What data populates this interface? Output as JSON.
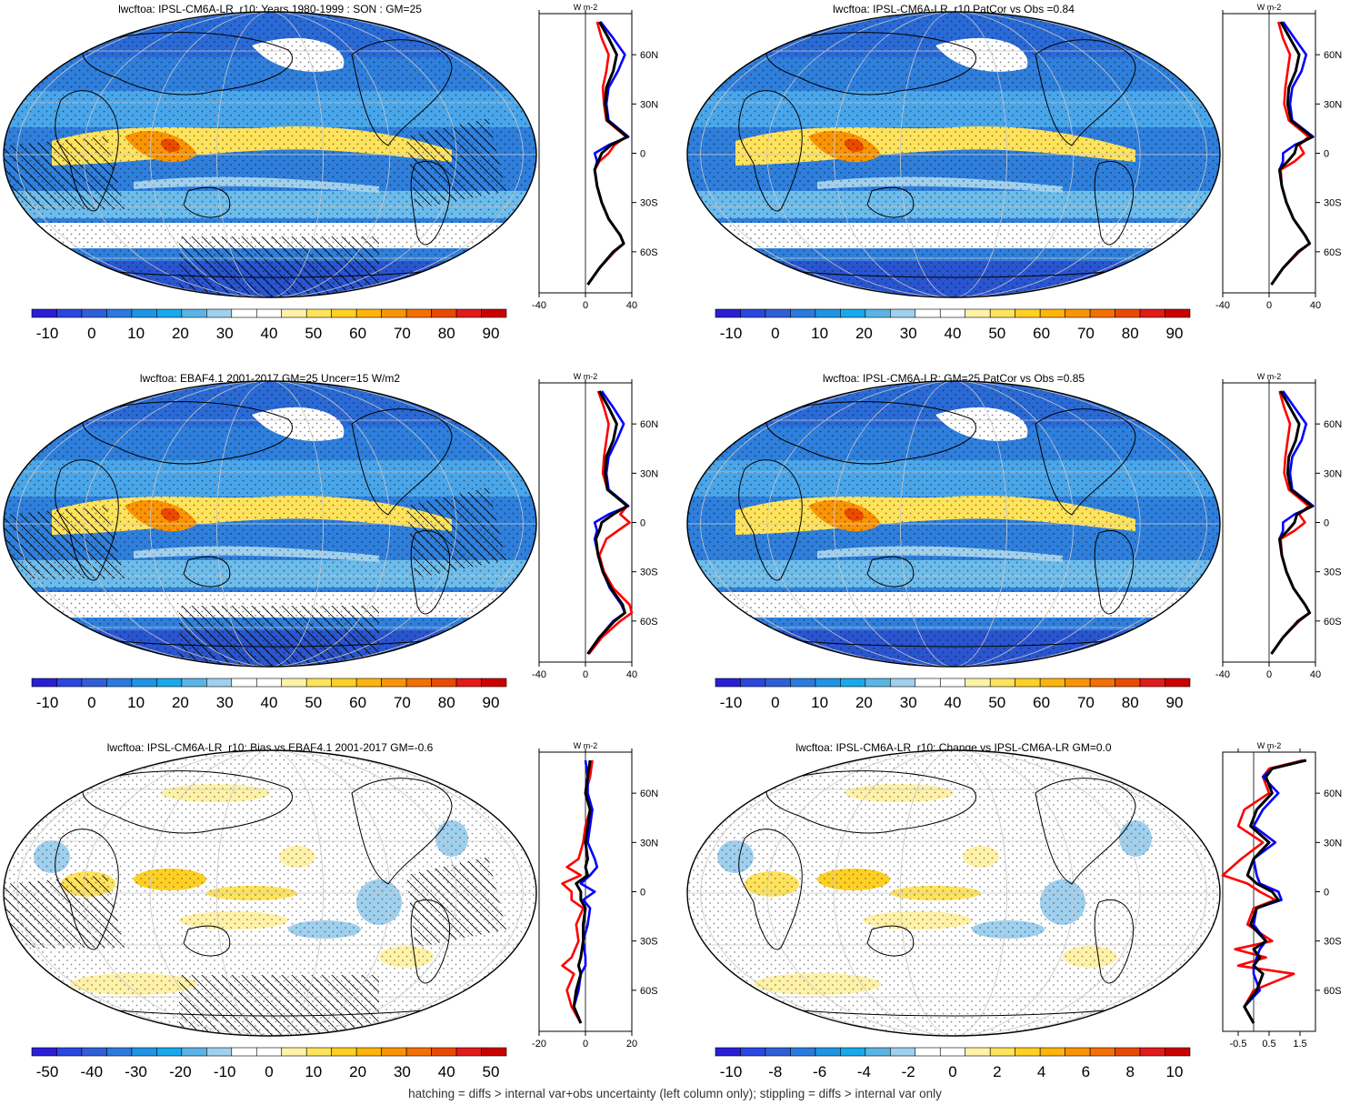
{
  "footnote": "hatching = diffs > internal var+obs uncertainty (left column only); stippling = diffs > internal var only",
  "colors": {
    "palette12": [
      "#2a1fd6",
      "#2c46e0",
      "#2f5fd8",
      "#2a7ae0",
      "#1e94e4",
      "#17a9ec",
      "#5ab4e6",
      "#9fd0ee",
      "#ffffff",
      "#ffffff",
      "#fff2a8",
      "#ffe35c",
      "#ffd024",
      "#ffb40a",
      "#fb9404",
      "#f47000",
      "#ea4a00",
      "#e31a1a",
      "#cc0000"
    ],
    "obs_line": "#0000ff",
    "model_line": "#ff0000",
    "mean_line": "#000000"
  },
  "chart_data": [
    {
      "type": "heatmap",
      "title": "lwcftoa: IPSL-CM6A-LR_r10: Years 1980-1999 : SON : GM=25",
      "colorbar_ticks": [
        "-10",
        "0",
        "10",
        "20",
        "30",
        "40",
        "50",
        "60",
        "70",
        "80",
        "90"
      ],
      "zonal": {
        "unit": "W m-2",
        "xticks": [
          "-40",
          "0",
          "40"
        ],
        "xlim": [
          -40,
          40
        ],
        "yticks": [
          "60N",
          "30N",
          "0",
          "30S",
          "60S"
        ],
        "lat": [
          80,
          70,
          60,
          50,
          40,
          30,
          20,
          10,
          5,
          0,
          -5,
          -10,
          -20,
          -30,
          -40,
          -50,
          -55,
          -60,
          -70,
          -80
        ],
        "series": [
          {
            "name": "red",
            "values": [
              10,
              14,
              20,
              18,
              15,
              16,
              18,
              35,
              25,
              20,
              12,
              8,
              10,
              14,
              20,
              30,
              33,
              25,
              12,
              2
            ]
          },
          {
            "name": "blue",
            "values": [
              13,
              24,
              34,
              28,
              20,
              18,
              20,
              37,
              20,
              8,
              10,
              8,
              10,
              14,
              20,
              30,
              33,
              24,
              12,
              2
            ]
          },
          {
            "name": "black",
            "values": [
              12,
              20,
              27,
              24,
              18,
              17,
              19,
              36,
              22,
              14,
              11,
              8,
              10,
              14,
              20,
              30,
              33,
              24,
              12,
              2
            ]
          }
        ]
      }
    },
    {
      "type": "heatmap",
      "title": "lwcftoa: IPSL-CM6A-LR_r10 PatCor vs Obs =0.84",
      "colorbar_ticks": [
        "-10",
        "0",
        "10",
        "20",
        "30",
        "40",
        "50",
        "60",
        "70",
        "80",
        "90"
      ],
      "zonal": {
        "unit": "W m-2",
        "xticks": [
          "-40",
          "0",
          "40"
        ],
        "xlim": [
          -40,
          40
        ],
        "yticks": [
          "60N",
          "30N",
          "0",
          "30S",
          "60S"
        ],
        "lat": [
          80,
          70,
          60,
          50,
          40,
          30,
          20,
          10,
          5,
          0,
          -5,
          -10,
          -20,
          -30,
          -40,
          -50,
          -55,
          -60,
          -70,
          -80
        ],
        "series": [
          {
            "name": "red",
            "values": [
              8,
              12,
              18,
              16,
              14,
              13,
              17,
              34,
              26,
              30,
              22,
              10,
              11,
              15,
              21,
              31,
              35,
              26,
              12,
              2
            ]
          },
          {
            "name": "blue",
            "values": [
              12,
              22,
              32,
              28,
              20,
              18,
              20,
              38,
              22,
              12,
              12,
              9,
              11,
              15,
              21,
              31,
              35,
              25,
              12,
              2
            ]
          },
          {
            "name": "black",
            "values": [
              10,
              18,
              26,
              23,
              17,
              16,
              19,
              37,
              24,
              22,
              16,
              9,
              11,
              15,
              21,
              31,
              35,
              25,
              12,
              2
            ]
          }
        ]
      }
    },
    {
      "type": "heatmap",
      "title": "lwcftoa: EBAF4.1 2001-2017 GM=25 Uncer=15 W/m2",
      "colorbar_ticks": [
        "-10",
        "0",
        "10",
        "20",
        "30",
        "40",
        "50",
        "60",
        "70",
        "80",
        "90"
      ],
      "zonal": {
        "unit": "W m-2",
        "xticks": [
          "-40",
          "0",
          "40"
        ],
        "xlim": [
          -40,
          40
        ],
        "yticks": [
          "60N",
          "30N",
          "0",
          "30S",
          "60S"
        ],
        "lat": [
          80,
          70,
          60,
          50,
          40,
          30,
          20,
          10,
          5,
          0,
          -5,
          -10,
          -20,
          -30,
          -40,
          -50,
          -55,
          -60,
          -70,
          -80
        ],
        "series": [
          {
            "name": "red",
            "values": [
              11,
              16,
              20,
              18,
              16,
              15,
              19,
              36,
              30,
              38,
              28,
              18,
              12,
              16,
              24,
              38,
              40,
              30,
              14,
              3
            ]
          },
          {
            "name": "blue",
            "values": [
              14,
              24,
              33,
              27,
              20,
              18,
              20,
              37,
              20,
              8,
              10,
              8,
              11,
              15,
              21,
              31,
              34,
              24,
              12,
              2
            ]
          },
          {
            "name": "black",
            "values": [
              12,
              20,
              27,
              24,
              18,
              17,
              19,
              36,
              24,
              14,
              12,
              9,
              11,
              15,
              22,
              32,
              34,
              25,
              12,
              2
            ]
          }
        ]
      }
    },
    {
      "type": "heatmap",
      "title": "lwcftoa: IPSL-CM6A-LR: GM=25 PatCor vs Obs =0.85",
      "colorbar_ticks": [
        "-10",
        "0",
        "10",
        "20",
        "30",
        "40",
        "50",
        "60",
        "70",
        "80",
        "90"
      ],
      "zonal": {
        "unit": "W m-2",
        "xticks": [
          "-40",
          "0",
          "40"
        ],
        "xlim": [
          -40,
          40
        ],
        "yticks": [
          "60N",
          "30N",
          "0",
          "30S",
          "60S"
        ],
        "lat": [
          80,
          70,
          60,
          50,
          40,
          30,
          20,
          10,
          5,
          0,
          -5,
          -10,
          -20,
          -30,
          -40,
          -50,
          -55,
          -60,
          -70,
          -80
        ],
        "series": [
          {
            "name": "red",
            "values": [
              9,
              13,
              18,
              16,
              14,
              13,
              17,
              34,
              26,
              31,
              22,
              10,
              11,
              15,
              21,
              31,
              35,
              26,
              12,
              2
            ]
          },
          {
            "name": "blue",
            "values": [
              12,
              22,
              32,
              28,
              20,
              18,
              20,
              38,
              22,
              12,
              12,
              9,
              11,
              15,
              21,
              31,
              35,
              25,
              12,
              2
            ]
          },
          {
            "name": "black",
            "values": [
              10,
              18,
              26,
              23,
              17,
              16,
              19,
              37,
              24,
              22,
              16,
              9,
              11,
              15,
              21,
              31,
              35,
              25,
              12,
              2
            ]
          }
        ]
      }
    },
    {
      "type": "heatmap",
      "title": "lwcftoa: IPSL-CM6A-LR_r10: Bias vs EBAF4.1 2001-2017  GM=-0.6",
      "colorbar_ticks": [
        "-50",
        "-40",
        "-30",
        "-20",
        "-10",
        "0",
        "10",
        "20",
        "30",
        "40",
        "50"
      ],
      "zonal": {
        "unit": "W m-2",
        "xticks": [
          "-20",
          "0",
          "20"
        ],
        "xlim": [
          -20,
          20
        ],
        "yticks": [
          "60N",
          "30N",
          "0",
          "30S",
          "60S"
        ],
        "lat": [
          80,
          70,
          60,
          50,
          40,
          30,
          20,
          15,
          10,
          5,
          0,
          -5,
          -10,
          -20,
          -30,
          -40,
          -45,
          -50,
          -60,
          -70,
          -80
        ],
        "series": [
          {
            "name": "red",
            "values": [
              3,
              2,
              0,
              2,
              0,
              -1,
              -3,
              -8,
              -2,
              -10,
              -6,
              -6,
              -1,
              -4,
              -3,
              -6,
              -10,
              -5,
              -8,
              -6,
              -2
            ]
          },
          {
            "name": "blue",
            "values": [
              0,
              1,
              1,
              3,
              2,
              1,
              4,
              5,
              2,
              -2,
              4,
              -1,
              2,
              1,
              -1,
              0,
              0,
              -2,
              -3,
              -5,
              -2
            ]
          },
          {
            "name": "black",
            "values": [
              2,
              1,
              0,
              2,
              1,
              0,
              1,
              0,
              1,
              -4,
              -2,
              -2,
              0,
              -1,
              -1,
              -2,
              -3,
              -2,
              -4,
              -5,
              -2
            ]
          }
        ]
      }
    },
    {
      "type": "heatmap",
      "title": "lwcftoa: IPSL-CM6A-LR_r10: Change vs IPSL-CM6A-LR GM=0.0",
      "colorbar_ticks": [
        "-10",
        "-8",
        "-6",
        "-4",
        "-2",
        "0",
        "2",
        "4",
        "6",
        "8",
        "10"
      ],
      "zonal": {
        "unit": "W m-2",
        "xticks": [
          "-0.5",
          "0.5",
          "1.5"
        ],
        "xlim": [
          -1,
          2
        ],
        "yticks": [
          "60N",
          "30N",
          "0",
          "30S",
          "60S"
        ],
        "lat": [
          80,
          75,
          70,
          60,
          50,
          40,
          30,
          20,
          10,
          5,
          0,
          -5,
          -10,
          -20,
          -30,
          -35,
          -40,
          -45,
          -50,
          -60,
          -70,
          -80
        ],
        "series": [
          {
            "name": "red",
            "values": [
              1.6,
              0.5,
              0.3,
              0.5,
              -0.3,
              -0.5,
              0.3,
              -0.4,
              -1.0,
              -0.2,
              0.2,
              0.7,
              0.0,
              -0.2,
              0.6,
              -0.6,
              0.4,
              -0.5,
              1.3,
              0.0,
              -0.3,
              0.0
            ]
          },
          {
            "name": "blue",
            "values": [
              1.7,
              0.6,
              0.3,
              0.8,
              0.3,
              0.0,
              0.7,
              0.0,
              0.1,
              0.2,
              0.8,
              0.9,
              0.1,
              0.0,
              0.4,
              0.2,
              0.1,
              0.0,
              0.0,
              0.2,
              -0.3,
              0.0
            ]
          },
          {
            "name": "black",
            "values": [
              1.7,
              0.6,
              0.4,
              0.6,
              0.1,
              -0.1,
              0.5,
              0.0,
              -0.2,
              0.1,
              0.6,
              0.8,
              0.1,
              -0.1,
              0.4,
              0.0,
              0.2,
              0.0,
              0.3,
              0.1,
              -0.3,
              0.0
            ]
          }
        ]
      }
    }
  ]
}
